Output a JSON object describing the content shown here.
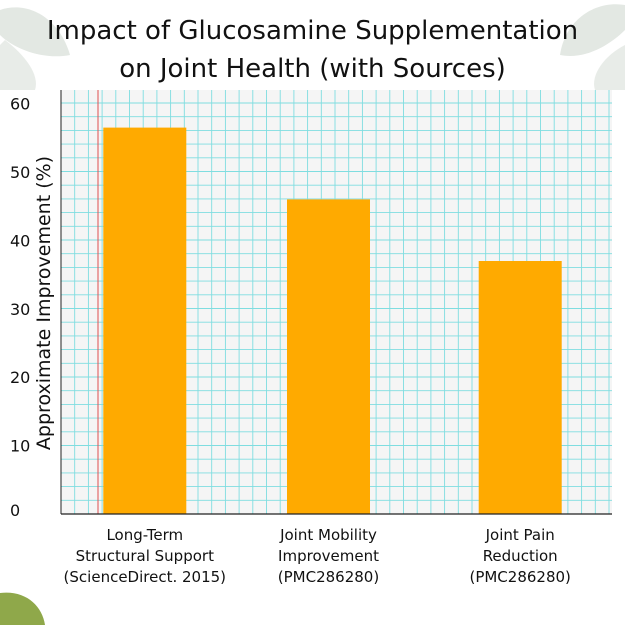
{
  "colors": {
    "bar": "#FFAA00",
    "grid": "#7FDDE0",
    "grid_minor": "#B6EEF0",
    "plot_bg": "#F5F5F5",
    "axis": "#222222",
    "accent_line": "#E05050",
    "leaf": "#DDE3DD",
    "corner_leaf": "#8FA84A"
  },
  "chart_data": {
    "type": "bar",
    "title": "Impact of Glucosamine Supplementation on Joint Health (with Sources)",
    "title_lines": [
      "Impact of Glucosamine Supplementation",
      "on Joint Health (with Sources)"
    ],
    "xlabel": "",
    "ylabel": "Approximate Improvement (%)",
    "ylim": [
      0,
      62
    ],
    "yticks": [
      0,
      10,
      20,
      30,
      40,
      50,
      60
    ],
    "grid": true,
    "categories": [
      [
        "Long-Term",
        "Structural Support",
        "(ScienceDirect. 2015)"
      ],
      [
        "Joint Mobility",
        "Improvement",
        "(PMC286280)"
      ],
      [
        "Joint Pain",
        "Reduction",
        "(PMC286280)"
      ]
    ],
    "values": [
      56.5,
      46,
      37
    ]
  }
}
